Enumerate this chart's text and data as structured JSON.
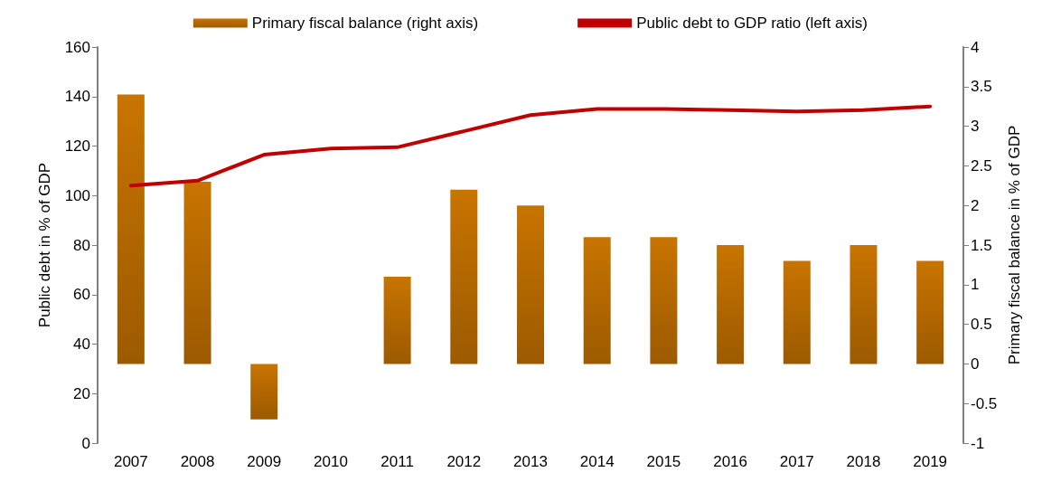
{
  "chart_data": {
    "type": "bar",
    "categories": [
      "2007",
      "2008",
      "2009",
      "2010",
      "2011",
      "2012",
      "2013",
      "2014",
      "2015",
      "2016",
      "2017",
      "2018",
      "2019"
    ],
    "series": [
      {
        "name": "Primary fiscal balance (right axis)",
        "axis": "y2",
        "color": "#c87400",
        "values": [
          3.4,
          2.3,
          -0.7,
          0,
          1.1,
          2.2,
          2.0,
          1.6,
          1.6,
          1.5,
          1.3,
          1.5,
          1.3
        ]
      },
      {
        "name": "Public debt to GDP ratio (left axis)",
        "type": "line",
        "color": "#c00000",
        "values": [
          104,
          106,
          116.5,
          119,
          119.5,
          126,
          132.5,
          135,
          135,
          134.5,
          134,
          134.5,
          136
        ]
      }
    ],
    "ylabel": "Public debt in % of GDP",
    "y2label": "Primary fiscal balance in % of GDP",
    "ylim": [
      0,
      160
    ],
    "yticks": [
      0,
      20,
      40,
      60,
      80,
      100,
      120,
      140,
      160
    ],
    "y2lim": [
      -1,
      4
    ],
    "y2ticks": [
      -1,
      -0.5,
      0,
      0.5,
      1,
      1.5,
      2,
      2.5,
      3,
      3.5,
      4
    ],
    "legend": "top",
    "grid": false,
    "marker": "none",
    "line_style": "solid"
  }
}
